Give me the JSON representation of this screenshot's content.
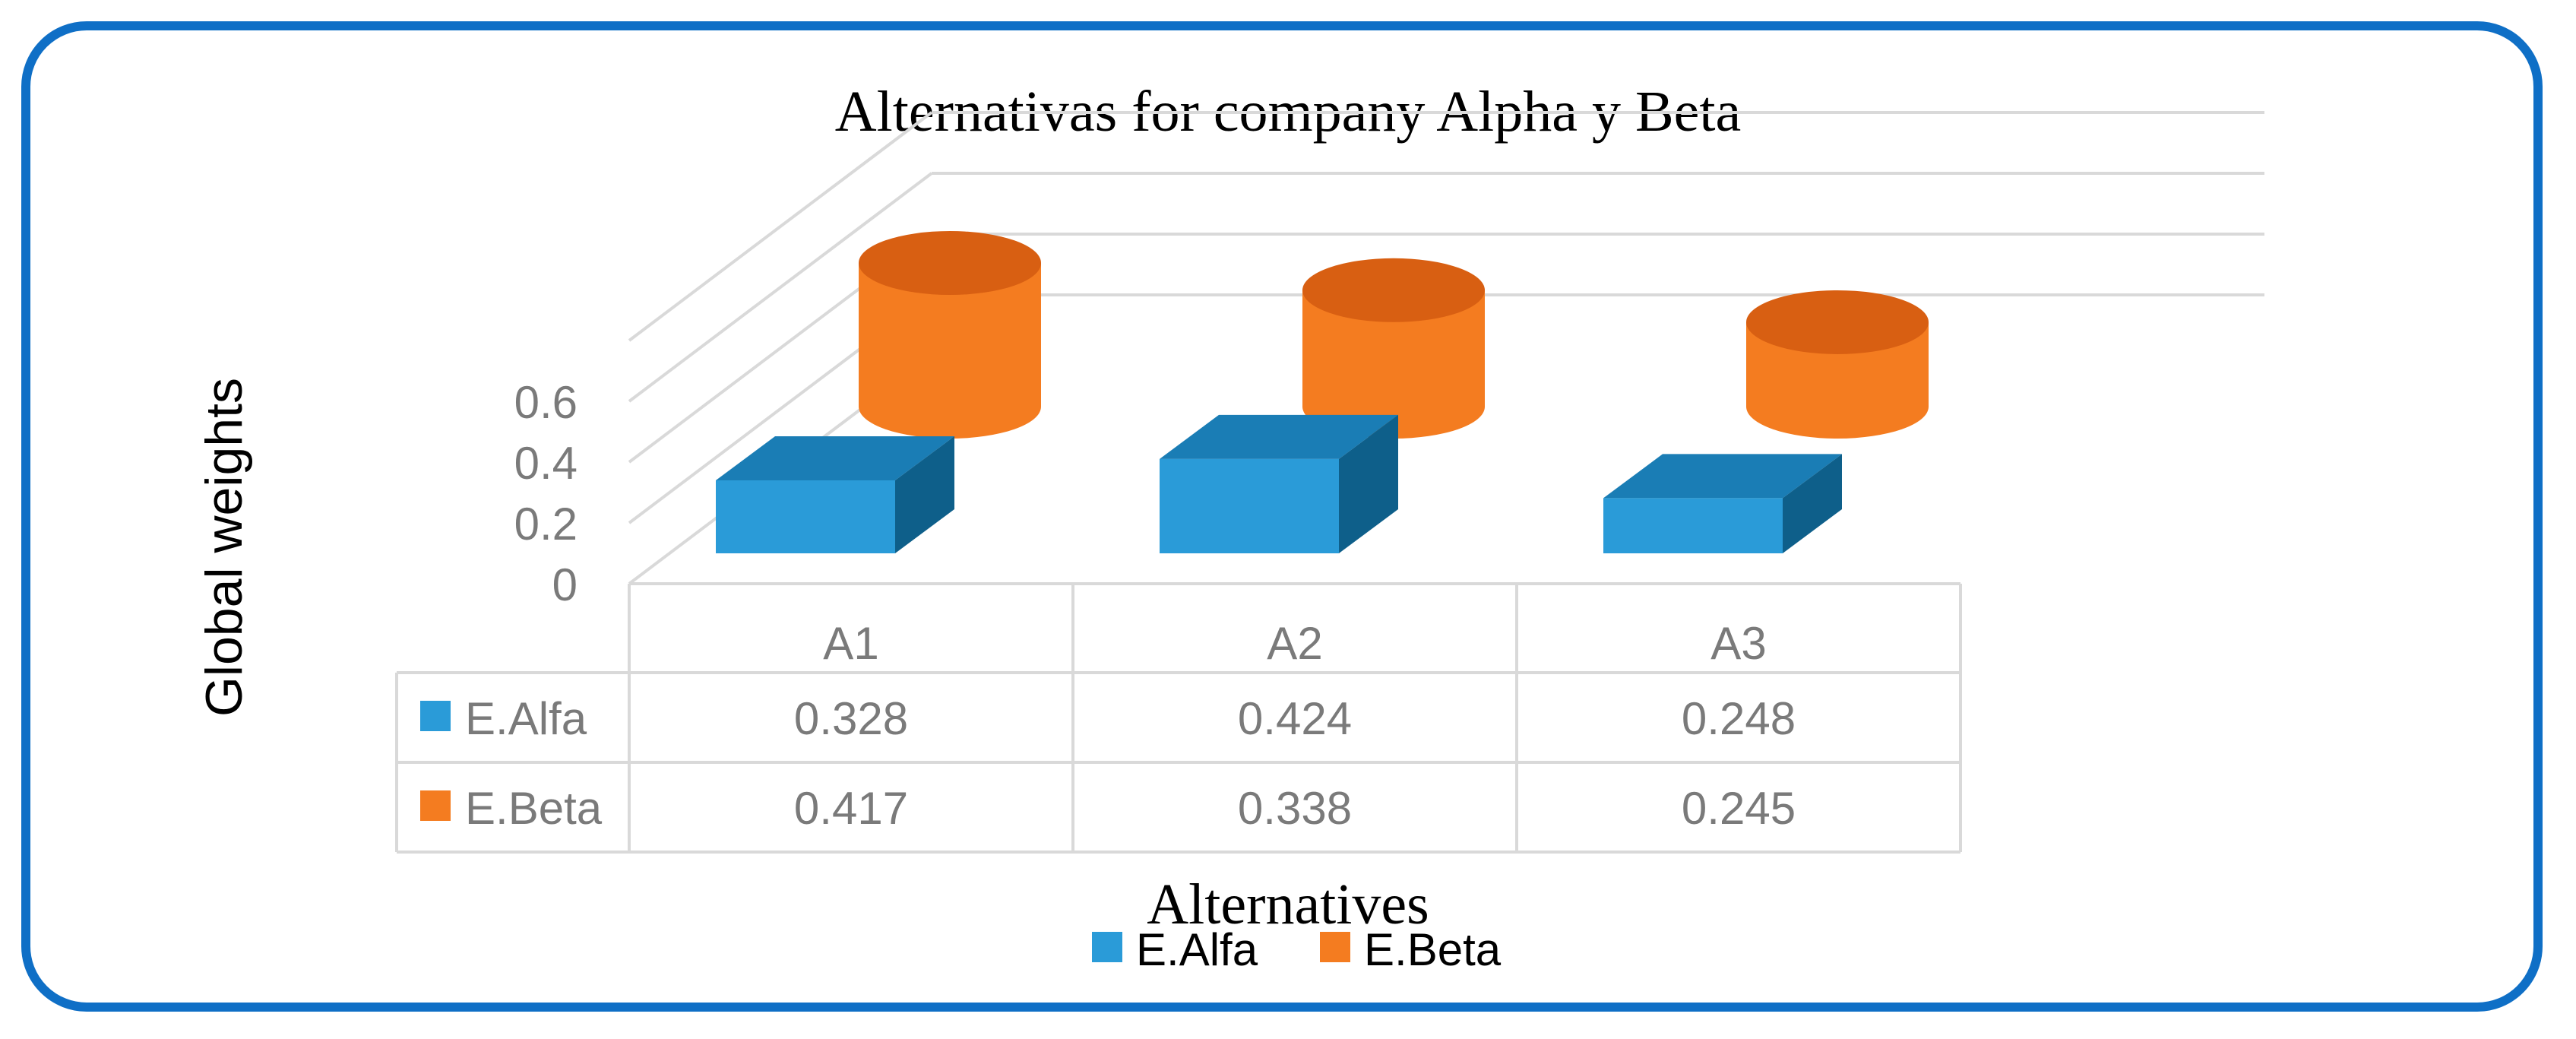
{
  "chart_data": {
    "type": "bar",
    "title": "Alternativas for company Alpha y Beta",
    "xlabel": "Alternatives",
    "ylabel": "Global  weights",
    "categories": [
      "A1",
      "A2",
      "A3"
    ],
    "y_ticks": [
      "0",
      "0.2",
      "0.4",
      "0.6"
    ],
    "ylim": [
      0,
      0.6
    ],
    "grid": true,
    "legend_position": "bottom",
    "data_table": true,
    "series": [
      {
        "name": "E.Alfa",
        "values": [
          0.328,
          0.424,
          0.248
        ],
        "color": "#2a9bd8"
      },
      {
        "name": "E.Beta",
        "values": [
          0.417,
          0.338,
          0.245
        ],
        "color": "#f47c20"
      }
    ],
    "table_values": [
      [
        "0.328",
        "0.424",
        "0.248"
      ],
      [
        "0.417",
        "0.338",
        "0.245"
      ]
    ]
  },
  "colors": {
    "frame": "#0f6fc6",
    "grid": "#d9d9d9",
    "axis_text": "#7a7a7a",
    "alfa_front": "#2a9bd8",
    "alfa_top": "#1a7db5",
    "alfa_side": "#0e5f8a",
    "beta_body": "#f47c20",
    "beta_top": "#d85f12"
  }
}
